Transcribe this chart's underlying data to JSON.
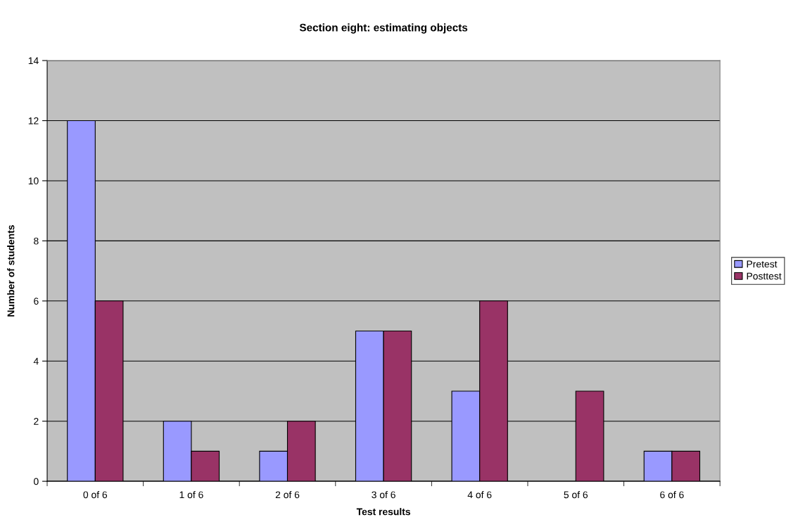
{
  "chart_data": {
    "type": "bar",
    "title": "Section eight: estimating objects",
    "xlabel": "Test results",
    "ylabel": "Number of students",
    "categories": [
      "0 of 6",
      "1 of 6",
      "2 of 6",
      "3 of 6",
      "4 of 6",
      "5 of 6",
      "6 of 6"
    ],
    "series": [
      {
        "name": "Pretest",
        "color": "#9999ff",
        "values": [
          12,
          2,
          1,
          5,
          3,
          null,
          1
        ]
      },
      {
        "name": "Posttest",
        "color": "#993366",
        "values": [
          6,
          1,
          2,
          5,
          6,
          3,
          1
        ]
      }
    ],
    "ylim": [
      0,
      14
    ],
    "yticks": [
      0,
      2,
      4,
      6,
      8,
      10,
      12,
      14
    ],
    "grid": "y",
    "legend": "right"
  }
}
